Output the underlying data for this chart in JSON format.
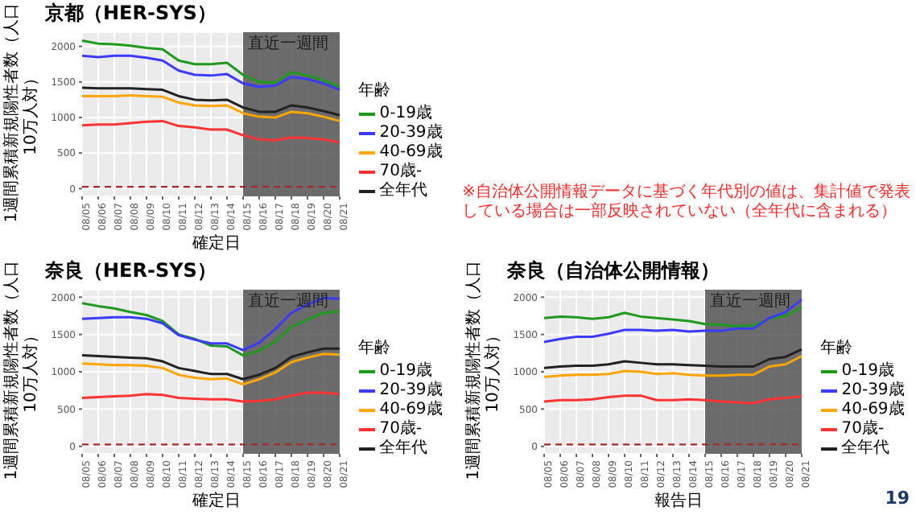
{
  "chart_data": [
    {
      "type": "line",
      "title": "京都（HER-SYS）",
      "xlabel": "確定日",
      "ylabel": "1週間累積新規陽性者数（人口10万人対）",
      "legend_title": "年齢",
      "legend": "right",
      "grid": true,
      "ylim": [
        -110,
        2200
      ],
      "yticks": [
        0,
        500,
        1000,
        1500,
        2000
      ],
      "categories": [
        "08/05",
        "08/06",
        "08/07",
        "08/08",
        "08/09",
        "08/10",
        "08/11",
        "08/12",
        "08/13",
        "08/14",
        "08/15",
        "08/16",
        "08/17",
        "08/18",
        "08/19",
        "08/20",
        "08/21"
      ],
      "bands": [
        {
          "axis": "x",
          "from": "08/15",
          "to": "08/21",
          "label": "直近一週間",
          "color": "#555555"
        }
      ],
      "ref_lines": [
        {
          "axis": "y",
          "value": 25,
          "color": "#a52a2a",
          "line_style": "dashed"
        }
      ],
      "series": [
        {
          "name": "0-19歳",
          "color": "#1f9a1f",
          "values": [
            2080,
            2040,
            2030,
            2010,
            1980,
            1960,
            1800,
            1750,
            1750,
            1770,
            1600,
            1500,
            1490,
            1640,
            1590,
            1520,
            1430
          ]
        },
        {
          "name": "20-39歳",
          "color": "#3b3bff",
          "values": [
            1870,
            1850,
            1870,
            1870,
            1840,
            1800,
            1660,
            1600,
            1590,
            1610,
            1480,
            1430,
            1450,
            1570,
            1540,
            1480,
            1390
          ]
        },
        {
          "name": "40-69歳",
          "color": "#ffa500",
          "values": [
            1300,
            1300,
            1300,
            1310,
            1300,
            1290,
            1210,
            1170,
            1160,
            1170,
            1060,
            1010,
            1000,
            1080,
            1060,
            1010,
            950
          ]
        },
        {
          "name": "70歳-",
          "color": "#ff3333",
          "values": [
            890,
            900,
            900,
            920,
            940,
            950,
            880,
            860,
            830,
            830,
            750,
            690,
            680,
            720,
            710,
            690,
            650
          ]
        },
        {
          "name": "全年代",
          "color": "#222222",
          "values": [
            1420,
            1410,
            1410,
            1410,
            1400,
            1390,
            1300,
            1250,
            1240,
            1250,
            1140,
            1080,
            1080,
            1170,
            1140,
            1090,
            1030
          ]
        }
      ]
    },
    {
      "type": "line",
      "title": "奈良（HER-SYS）",
      "xlabel": "確定日",
      "ylabel": "1週間累積新規陽性者数（人口10万人対）",
      "legend_title": "年齢",
      "legend": "right",
      "grid": true,
      "ylim": [
        -100,
        2100
      ],
      "yticks": [
        0,
        500,
        1000,
        1500,
        2000
      ],
      "categories": [
        "08/05",
        "08/06",
        "08/07",
        "08/08",
        "08/09",
        "08/10",
        "08/11",
        "08/12",
        "08/13",
        "08/14",
        "08/15",
        "08/16",
        "08/17",
        "08/18",
        "08/19",
        "08/20",
        "08/21"
      ],
      "bands": [
        {
          "axis": "x",
          "from": "08/15",
          "to": "08/21",
          "label": "直近一週間",
          "color": "#555555"
        }
      ],
      "ref_lines": [
        {
          "axis": "y",
          "value": 25,
          "color": "#a52a2a",
          "line_style": "dashed"
        }
      ],
      "series": [
        {
          "name": "0-19歳",
          "color": "#1f9a1f",
          "values": [
            1920,
            1880,
            1850,
            1800,
            1760,
            1680,
            1500,
            1440,
            1350,
            1340,
            1220,
            1280,
            1400,
            1600,
            1700,
            1790,
            1810
          ]
        },
        {
          "name": "20-39歳",
          "color": "#3b3bff",
          "values": [
            1710,
            1720,
            1730,
            1730,
            1710,
            1650,
            1490,
            1430,
            1380,
            1380,
            1290,
            1390,
            1570,
            1790,
            1900,
            1990,
            1980
          ]
        },
        {
          "name": "40-69歳",
          "color": "#ffa500",
          "values": [
            1110,
            1100,
            1090,
            1090,
            1080,
            1050,
            960,
            920,
            900,
            910,
            830,
            900,
            990,
            1130,
            1190,
            1240,
            1230
          ]
        },
        {
          "name": "70歳-",
          "color": "#ff3333",
          "values": [
            650,
            660,
            670,
            680,
            700,
            690,
            650,
            640,
            630,
            630,
            600,
            610,
            630,
            680,
            720,
            720,
            700
          ]
        },
        {
          "name": "全年代",
          "color": "#222222",
          "values": [
            1220,
            1210,
            1200,
            1190,
            1180,
            1140,
            1050,
            1010,
            970,
            970,
            900,
            960,
            1050,
            1200,
            1260,
            1310,
            1310
          ]
        }
      ]
    },
    {
      "type": "line",
      "title": "奈良（自治体公開情報）",
      "xlabel": "報告日",
      "ylabel": "1週間累積新規陽性者数（人口10万人対）",
      "legend_title": "年齢",
      "legend": "right",
      "grid": true,
      "ylim": [
        -100,
        2100
      ],
      "yticks": [
        0,
        500,
        1000,
        1500,
        2000
      ],
      "annotations": [
        "※自治体公開情報データに基づく年代別の値は、集計値で発表している場合は一部反映されていない（全年代に含まれる）",
        "19"
      ],
      "categories": [
        "08/05",
        "08/06",
        "08/07",
        "08/08",
        "08/09",
        "08/10",
        "08/11",
        "08/12",
        "08/13",
        "08/14",
        "08/15",
        "08/16",
        "08/17",
        "08/18",
        "08/19",
        "08/20",
        "08/21"
      ],
      "bands": [
        {
          "axis": "x",
          "from": "08/15",
          "to": "08/21",
          "label": "直近一週間",
          "color": "#555555"
        }
      ],
      "ref_lines": [
        {
          "axis": "y",
          "value": 25,
          "color": "#a52a2a",
          "line_style": "dashed"
        }
      ],
      "series": [
        {
          "name": "0-19歳",
          "color": "#1f9a1f",
          "values": [
            1720,
            1740,
            1730,
            1710,
            1730,
            1790,
            1740,
            1720,
            1700,
            1680,
            1640,
            1630,
            1610,
            1620,
            1710,
            1750,
            1860
          ]
        },
        {
          "name": "20-39歳",
          "color": "#3b3bff",
          "values": [
            1400,
            1440,
            1470,
            1470,
            1510,
            1560,
            1560,
            1550,
            1560,
            1540,
            1550,
            1550,
            1580,
            1580,
            1720,
            1800,
            1970
          ]
        },
        {
          "name": "40-69歳",
          "color": "#ffa500",
          "values": [
            930,
            950,
            960,
            960,
            970,
            1010,
            1000,
            970,
            980,
            960,
            950,
            950,
            960,
            960,
            1070,
            1100,
            1210
          ]
        },
        {
          "name": "70歳-",
          "color": "#ff3333",
          "values": [
            600,
            620,
            620,
            630,
            660,
            680,
            680,
            620,
            620,
            630,
            620,
            600,
            590,
            580,
            630,
            650,
            670
          ]
        },
        {
          "name": "全年代",
          "color": "#222222",
          "values": [
            1050,
            1070,
            1080,
            1080,
            1100,
            1140,
            1120,
            1100,
            1100,
            1090,
            1080,
            1070,
            1070,
            1070,
            1170,
            1200,
            1300
          ]
        }
      ]
    }
  ]
}
